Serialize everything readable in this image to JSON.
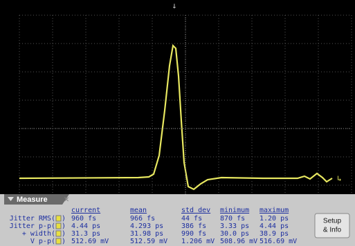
{
  "panel": {
    "title": "Measure",
    "columns": [
      "current",
      "mean",
      "std dev",
      "minimum",
      "maximum"
    ],
    "close_paren": ")",
    "rows": [
      {
        "label": "Jitter RMS(",
        "cells": [
          "960 fs",
          "966 fs",
          "44 fs",
          "870 fs",
          "1.20 ps"
        ]
      },
      {
        "label": "Jitter p-p(",
        "cells": [
          "4.44 ps",
          "4.293 ps",
          "386 fs",
          "3.33 ps",
          "4.44 ps"
        ]
      },
      {
        "label": "+ width(",
        "cells": [
          "31.3 ps",
          "31.98 ps",
          "990 fs",
          "30.0 ps",
          "38.9 ps"
        ]
      },
      {
        "label": "V p-p(",
        "cells": [
          "512.69 mV",
          "512.59 mV",
          "1.206 mV",
          "508.96 mV",
          "516.69 mV"
        ]
      }
    ],
    "button": [
      "Setup",
      "& Info"
    ]
  }
}
